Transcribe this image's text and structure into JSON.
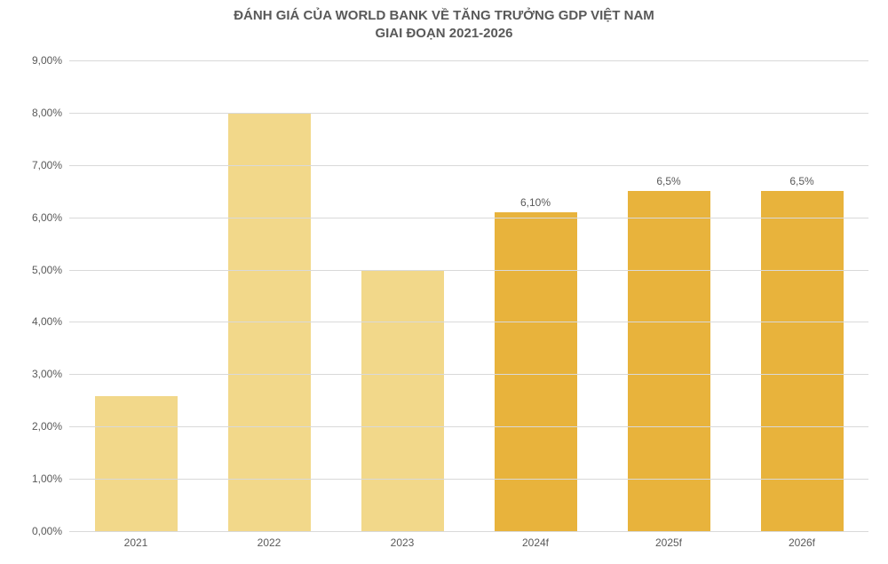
{
  "chart": {
    "type": "bar",
    "title_line1": "ĐÁNH GIÁ CỦA WORLD BANK VỀ TĂNG TRƯỞNG GDP VIỆT NAM",
    "title_line2": "GIAI ĐOẠN 2021-2026",
    "title_fontsize": 15,
    "title_color": "#595959",
    "background_color": "#ffffff",
    "grid_color": "#d9d9d9",
    "axis_text_color": "#595959",
    "label_fontsize": 12,
    "value_label_fontsize": 12,
    "ylim": [
      0,
      9
    ],
    "ytick_step": 1,
    "y_format_suffix": "%",
    "y_decimal_sep": ",",
    "y_decimals": 2,
    "yticks": [
      "0,00%",
      "1,00%",
      "2,00%",
      "3,00%",
      "4,00%",
      "5,00%",
      "6,00%",
      "7,00%",
      "8,00%",
      "9,00%"
    ],
    "categories": [
      "2021",
      "2022",
      "2023",
      "2024f",
      "2025f",
      "2026f"
    ],
    "values": [
      2.58,
      8.0,
      5.0,
      6.1,
      6.5,
      6.5
    ],
    "value_labels": [
      "",
      "",
      "",
      "6,10%",
      "6,5%",
      "6,5%"
    ],
    "bar_colors": [
      "#f2d88a",
      "#f2d88a",
      "#f2d88a",
      "#e8b33c",
      "#e8b33c",
      "#e8b33c"
    ],
    "bar_width": 0.62
  }
}
